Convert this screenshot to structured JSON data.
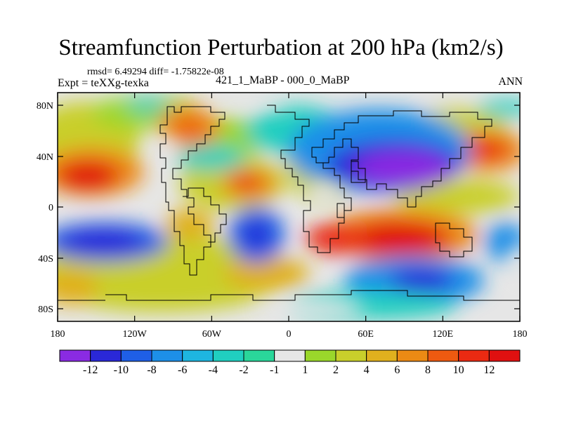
{
  "title": "Streamfunction Perturbation at 200 hPa (km2/s)",
  "stats_line": "rmsd= 6.49294 diff= -1.75822e-08",
  "experiment_label": "Expt = teXXg-texka",
  "experiment_name": "421_1_MaBP - 000_0_MaBP",
  "season": "ANN",
  "axes": {
    "x_tick_labels": [
      "180",
      "120W",
      "60W",
      "0",
      "60E",
      "120E",
      "180"
    ],
    "y_tick_labels": [
      "80N",
      "40N",
      "0",
      "40S",
      "80S"
    ]
  },
  "colorbar": {
    "labels": [
      "-12",
      "-10",
      "-8",
      "-6",
      "-4",
      "-2",
      "-1",
      "1",
      "2",
      "4",
      "6",
      "8",
      "10",
      "12"
    ],
    "colors": [
      "#8a2be2",
      "#2a28d8",
      "#1f5fe6",
      "#1d8fe8",
      "#1eb6e0",
      "#20cfc0",
      "#2ad69a",
      "#e6e6e6",
      "#9ad72b",
      "#c9cf2b",
      "#e0b01e",
      "#ec8a14",
      "#ee5a10",
      "#ea2a12",
      "#e01010"
    ]
  },
  "colors": {
    "background_zero": "#e6e6e6",
    "coastline": "#000000"
  }
}
